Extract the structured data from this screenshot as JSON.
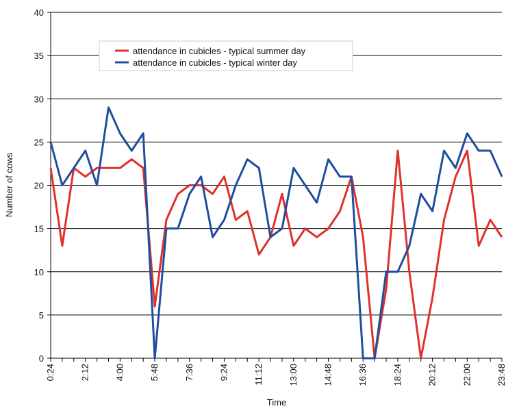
{
  "chart_data": {
    "type": "line",
    "xlabel": "Time",
    "ylabel": "Number of cows",
    "categories": [
      "0:24",
      null,
      null,
      "2:12",
      null,
      null,
      "4:00",
      null,
      null,
      "5:48",
      null,
      null,
      "7:36",
      null,
      null,
      "9:24",
      null,
      null,
      "11:12",
      null,
      null,
      "13:00",
      null,
      null,
      "14:48",
      null,
      null,
      "16:36",
      null,
      null,
      "18:24",
      null,
      null,
      "20:12",
      null,
      null,
      "22:00",
      null,
      null,
      "23:48"
    ],
    "series": [
      {
        "name": "attendance in cubicles - typical summer day",
        "color": "#e0312b",
        "values": [
          22,
          13,
          22,
          21,
          22,
          22,
          22,
          23,
          22,
          6,
          16,
          19,
          20,
          20,
          19,
          21,
          16,
          17,
          12,
          14,
          19,
          13,
          15,
          14,
          15,
          17,
          21,
          14,
          0,
          8,
          24,
          10,
          0,
          7,
          16,
          21,
          24,
          13,
          16,
          14
        ]
      },
      {
        "name": "attendance in cubicles - typical winter day",
        "color": "#1f4e9e",
        "values": [
          25,
          20,
          22,
          24,
          20,
          29,
          26,
          24,
          26,
          0,
          15,
          15,
          19,
          21,
          14,
          16,
          20,
          23,
          22,
          14,
          15,
          22,
          20,
          18,
          23,
          21,
          21,
          0,
          0,
          10,
          10,
          13,
          19,
          17,
          24,
          22,
          26,
          24,
          24,
          21
        ]
      }
    ],
    "ylim": [
      0,
      40
    ],
    "yticks": [
      0,
      5,
      10,
      15,
      20,
      25,
      30,
      35,
      40
    ],
    "grid": true,
    "legend": "upper left"
  }
}
